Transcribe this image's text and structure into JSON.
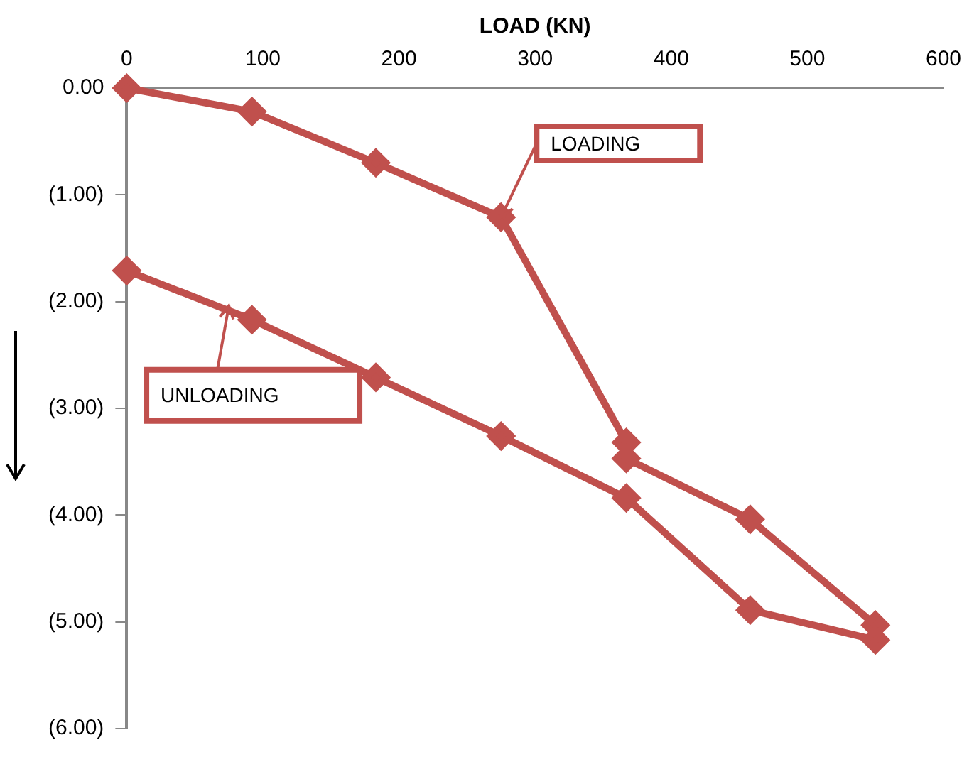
{
  "chart_data": {
    "type": "line",
    "xlabel": "LOAD (KN)",
    "x": [
      0,
      92,
      183,
      275,
      367,
      367,
      458,
      550,
      550,
      458,
      367,
      275,
      183,
      92,
      0
    ],
    "series": [
      {
        "color": "#c0504d",
        "values": [
          0,
          -0.22,
          -0.7,
          -1.21,
          -3.32,
          -3.47,
          -4.04,
          -5.03,
          -5.17,
          -4.89,
          -3.84,
          -3.26,
          -2.71,
          -2.17,
          -1.71
        ]
      }
    ],
    "xlim": [
      0,
      600
    ],
    "xticks": [
      0,
      100,
      200,
      300,
      400,
      500,
      600
    ],
    "ylim": [
      -6,
      0
    ],
    "yticks": [
      {
        "value": 0,
        "label": "0.00"
      },
      {
        "value": -1,
        "label": "(1.00)"
      },
      {
        "value": -2,
        "label": "(2.00)"
      },
      {
        "value": -3,
        "label": "(3.00)"
      },
      {
        "value": -4,
        "label": "(4.00)"
      },
      {
        "value": -5,
        "label": "(5.00)"
      },
      {
        "value": -6,
        "label": "(6.00)"
      }
    ],
    "annotations": [
      {
        "text": "LOADING",
        "x": 275,
        "y": -1.21
      },
      {
        "text": "UNLOADING",
        "x": 75,
        "y": -2.04
      }
    ],
    "marker": "diamond",
    "line_style": "solid",
    "grid": false,
    "legend": false
  }
}
